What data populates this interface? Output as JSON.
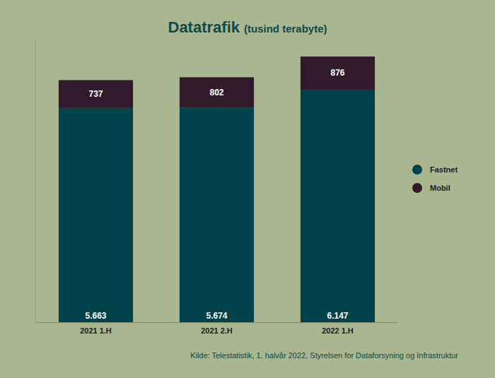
{
  "chart_data": {
    "type": "bar",
    "title": "Datatrafik",
    "subtitle": "(tusind terabyte)",
    "source": "Kilde: Telestatistik, 1. halvår 2022, Styrelsen for Dataforsyning og Infrastruktur",
    "categories": [
      "2021 1.H",
      "2021 2.H",
      "2022 1.H"
    ],
    "series": [
      {
        "name": "Fastnet",
        "color": "#00434b",
        "values": [
          5663,
          5674,
          6147
        ],
        "value_labels": [
          "5.663",
          "5.674",
          "6.147"
        ]
      },
      {
        "name": "Mobil",
        "color": "#321a2d",
        "values": [
          737,
          802,
          876
        ]
      }
    ],
    "ylim": [
      0,
      7500
    ],
    "stacked": true,
    "data_labels": true,
    "tick_labels": "x",
    "legend": "right",
    "grid": false
  }
}
